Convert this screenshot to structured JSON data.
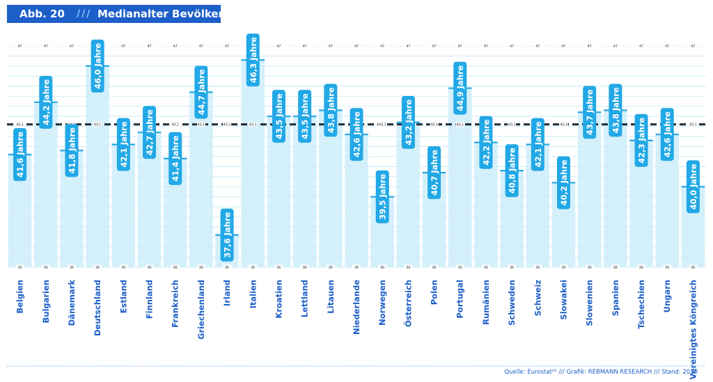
{
  "header": {
    "figure_number": "Abb. 20",
    "separator": "///",
    "title": "Medianalter Bevölkerung"
  },
  "source": "Quelle: Eurostat²⁰ /// Grafik: REBMANN RESEARCH /// Stand: 2018",
  "colors": {
    "header_bg": "#1d5fc9",
    "label_blue": "#1d5fc9",
    "bar_fill": "#cfeefb",
    "bar_light": "#e4f5fd",
    "tag_fill": "#22a8e6",
    "gridline": "#bfe6f7",
    "reference_line": "#1f2a36"
  },
  "chart_data": {
    "type": "bar",
    "title": "Medianalter Bevölkerung",
    "xlabel": "",
    "ylabel": "",
    "ylim": [
      36,
      47
    ],
    "y_min_label": "36",
    "y_max_label": "47",
    "reference_value": 43.1,
    "reference_label": "43,1",
    "value_suffix": " Jahre",
    "categories": [
      "Belgien",
      "Bulgarien",
      "Dänemark",
      "Deutschland",
      "Estland",
      "Finnland",
      "Frankreich",
      "Griechenland",
      "Irland",
      "Italien",
      "Kroatien",
      "Lettland",
      "Litauen",
      "Niederlande",
      "Norwegen",
      "Österreich",
      "Polen",
      "Portugal",
      "Rumänien",
      "Schweden",
      "Schweiz",
      "Slowakei",
      "Slowenien",
      "Spanien",
      "Tschechien",
      "Ungarn",
      "Vereinigtes Köngreich"
    ],
    "values": [
      41.6,
      44.2,
      41.8,
      46.0,
      42.1,
      42.7,
      41.4,
      44.7,
      37.6,
      46.3,
      43.5,
      43.5,
      43.8,
      42.6,
      39.5,
      43.2,
      40.7,
      44.9,
      42.2,
      40.8,
      42.1,
      40.2,
      43.7,
      43.8,
      42.3,
      42.6,
      40.0
    ],
    "value_labels": [
      "41,6",
      "44,2",
      "41,8",
      "46,0",
      "42,1",
      "42,7",
      "41,4",
      "44,7",
      "37,6",
      "46,3",
      "43,5",
      "43,5",
      "43,8",
      "42,6",
      "39,5",
      "43,2",
      "40,7",
      "44,9",
      "42,2",
      "40,8",
      "42,1",
      "40,2",
      "43,7",
      "43,8",
      "42,3",
      "42,6",
      "40,0"
    ]
  }
}
